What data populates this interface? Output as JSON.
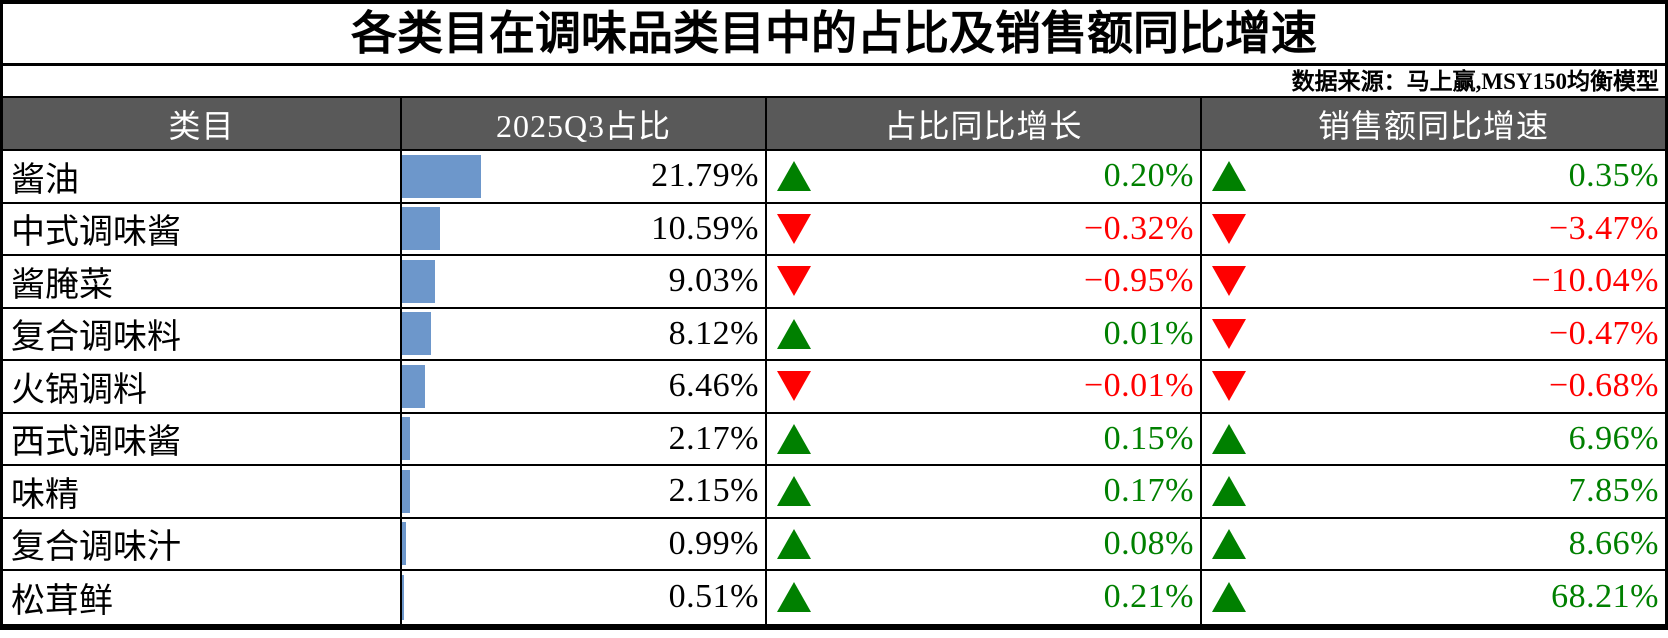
{
  "title": "各类目在调味品类目中的占比及销售额同比增速",
  "source_note": "数据来源：马上赢,MSY150均衡模型",
  "colors": {
    "bar": "#6D97CB",
    "up": "#008000",
    "down": "#FF0000",
    "header_bg": "#595959",
    "header_fg": "#FFFFFF"
  },
  "table": {
    "columns": [
      "类目",
      "2025Q3占比",
      "占比同比增长",
      "销售额同比增速"
    ],
    "rows": [
      {
        "category": "酱油",
        "share": "21.79%",
        "share_value": 21.79,
        "share_yoy": "0.20%",
        "share_yoy_dir": "up",
        "sales_yoy": "0.35%",
        "sales_yoy_dir": "up"
      },
      {
        "category": "中式调味酱",
        "share": "10.59%",
        "share_value": 10.59,
        "share_yoy": "−0.32%",
        "share_yoy_dir": "down",
        "sales_yoy": "−3.47%",
        "sales_yoy_dir": "down"
      },
      {
        "category": "酱腌菜",
        "share": "9.03%",
        "share_value": 9.03,
        "share_yoy": "−0.95%",
        "share_yoy_dir": "down",
        "sales_yoy": "−10.04%",
        "sales_yoy_dir": "down"
      },
      {
        "category": "复合调味料",
        "share": "8.12%",
        "share_value": 8.12,
        "share_yoy": "0.01%",
        "share_yoy_dir": "up",
        "sales_yoy": "−0.47%",
        "sales_yoy_dir": "down"
      },
      {
        "category": "火锅调料",
        "share": "6.46%",
        "share_value": 6.46,
        "share_yoy": "−0.01%",
        "share_yoy_dir": "down",
        "sales_yoy": "−0.68%",
        "sales_yoy_dir": "down"
      },
      {
        "category": "西式调味酱",
        "share": "2.17%",
        "share_value": 2.17,
        "share_yoy": "0.15%",
        "share_yoy_dir": "up",
        "sales_yoy": "6.96%",
        "sales_yoy_dir": "up"
      },
      {
        "category": "味精",
        "share": "2.15%",
        "share_value": 2.15,
        "share_yoy": "0.17%",
        "share_yoy_dir": "up",
        "sales_yoy": "7.85%",
        "sales_yoy_dir": "up"
      },
      {
        "category": "复合调味汁",
        "share": "0.99%",
        "share_value": 0.99,
        "share_yoy": "0.08%",
        "share_yoy_dir": "up",
        "sales_yoy": "8.66%",
        "sales_yoy_dir": "up"
      },
      {
        "category": "松茸鲜",
        "share": "0.51%",
        "share_value": 0.51,
        "share_yoy": "0.21%",
        "share_yoy_dir": "up",
        "sales_yoy": "68.21%",
        "sales_yoy_dir": "up"
      }
    ]
  },
  "chart_data": {
    "type": "table",
    "title": "各类目在调味品类目中的占比及销售额同比增速",
    "source": "数据来源：马上赢,MSY150均衡模型",
    "categories": [
      "酱油",
      "中式调味酱",
      "酱腌菜",
      "复合调味料",
      "火锅调料",
      "西式调味酱",
      "味精",
      "复合调味汁",
      "松茸鲜"
    ],
    "series": [
      {
        "name": "2025Q3占比",
        "unit": "%",
        "values": [
          21.79,
          10.59,
          9.03,
          8.12,
          6.46,
          2.17,
          2.15,
          0.99,
          0.51
        ],
        "bar_scale_max": 100
      },
      {
        "name": "占比同比增长",
        "unit": "%",
        "values": [
          0.2,
          -0.32,
          -0.95,
          0.01,
          -0.01,
          0.15,
          0.17,
          0.08,
          0.21
        ]
      },
      {
        "name": "销售额同比增速",
        "unit": "%",
        "values": [
          0.35,
          -3.47,
          -10.04,
          -0.47,
          -0.68,
          6.96,
          7.85,
          8.66,
          68.21
        ]
      }
    ],
    "legend_position": "none",
    "grid": "table-borders"
  }
}
